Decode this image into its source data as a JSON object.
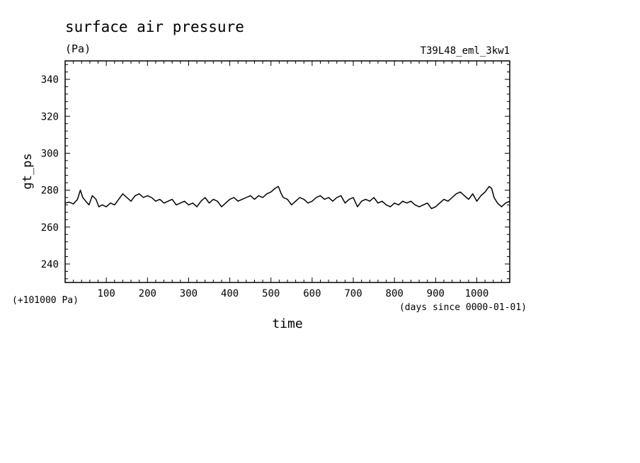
{
  "chart_data": {
    "type": "line",
    "title": "surface air pressure",
    "units": "(Pa)",
    "run_label": "T39L48_eml_3kw1",
    "ylabel": "gt_ps",
    "xlabel": "time",
    "x_units": "(days since 0000-01-01)",
    "y_offset_label": "(+101000 Pa)",
    "xlim": [
      0,
      1080
    ],
    "ylim": [
      230,
      350
    ],
    "x_major_ticks": [
      100,
      200,
      300,
      400,
      500,
      600,
      700,
      800,
      900,
      1000
    ],
    "x_tick_labels": [
      "100",
      "200",
      "300",
      "400",
      "500",
      "600",
      "700",
      "800",
      "900",
      "1000"
    ],
    "y_major_ticks": [
      240,
      260,
      280,
      300,
      320,
      340
    ],
    "y_tick_labels": [
      "240",
      "260",
      "280",
      "300",
      "320",
      "340"
    ],
    "x_minor_step": 20,
    "y_minor_step": 4,
    "grid": false,
    "series": [
      {
        "color": "#000000",
        "x": [
          0,
          10,
          20,
          30,
          37,
          43,
          50,
          58,
          66,
          75,
          82,
          90,
          100,
          110,
          120,
          130,
          140,
          150,
          160,
          170,
          180,
          190,
          200,
          210,
          220,
          230,
          240,
          250,
          260,
          270,
          280,
          290,
          300,
          310,
          320,
          330,
          340,
          350,
          360,
          370,
          380,
          390,
          400,
          410,
          420,
          430,
          440,
          450,
          460,
          470,
          480,
          490,
          500,
          510,
          518,
          525,
          530,
          540,
          550,
          560,
          570,
          580,
          590,
          600,
          610,
          620,
          630,
          640,
          650,
          660,
          670,
          680,
          690,
          700,
          710,
          720,
          730,
          740,
          750,
          760,
          770,
          780,
          790,
          800,
          810,
          820,
          830,
          840,
          850,
          860,
          870,
          880,
          890,
          900,
          910,
          920,
          930,
          940,
          950,
          960,
          970,
          980,
          990,
          1000,
          1010,
          1020,
          1030,
          1036,
          1042,
          1050,
          1060,
          1070,
          1080
        ],
        "y": [
          273,
          273.5,
          272.5,
          275,
          280,
          276,
          274,
          272,
          277,
          275,
          271,
          272,
          271,
          273,
          272,
          275,
          278,
          276,
          274,
          277,
          278,
          276,
          277,
          276,
          274,
          275,
          273,
          274,
          275,
          272,
          273,
          274,
          272,
          273,
          271,
          274,
          276,
          273,
          275,
          274,
          271,
          273,
          275,
          276,
          274,
          275,
          276,
          277,
          275,
          277,
          276,
          278,
          279,
          281,
          282,
          278,
          276,
          275,
          272,
          274,
          276,
          275,
          273,
          274,
          276,
          277,
          275,
          276,
          274,
          276,
          277,
          273,
          275,
          276,
          271,
          274,
          275,
          274,
          276,
          273,
          274,
          272,
          271,
          273,
          272,
          274,
          273,
          274,
          272,
          271,
          272,
          273,
          270,
          271,
          273,
          275,
          274,
          276,
          278,
          279,
          277,
          275,
          278,
          274,
          277,
          279,
          282,
          281,
          276,
          273,
          271,
          273,
          274
        ]
      }
    ]
  }
}
